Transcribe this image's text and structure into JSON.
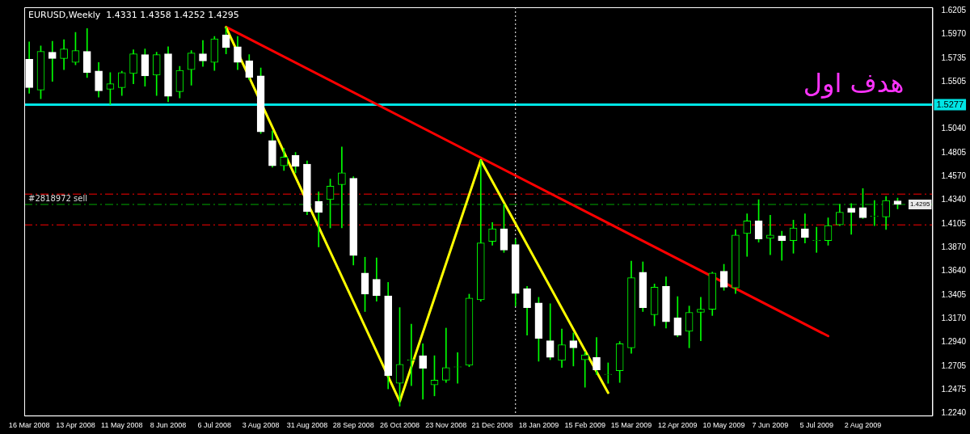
{
  "chart_data": {
    "type": "candlestick",
    "title": "EURUSD,Weekly  1.4331 1.4358 1.4252 1.4295",
    "x": [
      "2008-03-16",
      "2008-03-23",
      "2008-03-30",
      "2008-04-06",
      "2008-04-13",
      "2008-04-20",
      "2008-04-27",
      "2008-05-04",
      "2008-05-11",
      "2008-05-18",
      "2008-05-25",
      "2008-06-01",
      "2008-06-08",
      "2008-06-15",
      "2008-06-22",
      "2008-06-29",
      "2008-07-06",
      "2008-07-13",
      "2008-07-20",
      "2008-07-27",
      "2008-08-03",
      "2008-08-10",
      "2008-08-17",
      "2008-08-24",
      "2008-08-31",
      "2008-09-07",
      "2008-09-14",
      "2008-09-21",
      "2008-09-28",
      "2008-10-05",
      "2008-10-12",
      "2008-10-19",
      "2008-10-26",
      "2008-11-02",
      "2008-11-09",
      "2008-11-16",
      "2008-11-23",
      "2008-11-30",
      "2008-12-07",
      "2008-12-14",
      "2008-12-21",
      "2008-12-28",
      "2009-01-04",
      "2009-01-11",
      "2009-01-18",
      "2009-01-25",
      "2009-02-01",
      "2009-02-08",
      "2009-02-15",
      "2009-02-22",
      "2009-03-01",
      "2009-03-08",
      "2009-03-15",
      "2009-03-22",
      "2009-03-29",
      "2009-04-05",
      "2009-04-12",
      "2009-04-19",
      "2009-04-26",
      "2009-05-03",
      "2009-05-10",
      "2009-05-17",
      "2009-05-24",
      "2009-05-31",
      "2009-06-07",
      "2009-06-14",
      "2009-06-21",
      "2009-06-28",
      "2009-07-05",
      "2009-07-12",
      "2009-07-19",
      "2009-07-26",
      "2009-08-02",
      "2009-08-09",
      "2009-08-16",
      "2009-08-23"
    ],
    "ohlc": [
      [
        1.5724,
        1.5895,
        1.539,
        1.5445
      ],
      [
        1.5421,
        1.5856,
        1.5336,
        1.5802
      ],
      [
        1.5794,
        1.5902,
        1.5507,
        1.5732
      ],
      [
        1.5732,
        1.5918,
        1.5623,
        1.5825
      ],
      [
        1.5693,
        1.5988,
        1.567,
        1.5809
      ],
      [
        1.5801,
        1.6027,
        1.5545,
        1.5592
      ],
      [
        1.5608,
        1.5693,
        1.5351,
        1.5414
      ],
      [
        1.5429,
        1.5592,
        1.5281,
        1.5483
      ],
      [
        1.5445,
        1.5607,
        1.5367,
        1.5592
      ],
      [
        1.5584,
        1.5817,
        1.5483,
        1.5778
      ],
      [
        1.577,
        1.5825,
        1.546,
        1.5561
      ],
      [
        1.5569,
        1.5794,
        1.5367,
        1.577
      ],
      [
        1.5778,
        1.5848,
        1.5305,
        1.5359
      ],
      [
        1.5406,
        1.5654,
        1.5344,
        1.5615
      ],
      [
        1.5623,
        1.5809,
        1.5468,
        1.5786
      ],
      [
        1.5778,
        1.591,
        1.5654,
        1.5708
      ],
      [
        1.5693,
        1.5949,
        1.5615,
        1.5926
      ],
      [
        1.5965,
        1.6042,
        1.5778,
        1.584
      ],
      [
        1.5848,
        1.5949,
        1.5623,
        1.5693
      ],
      [
        1.5708,
        1.577,
        1.5522,
        1.5545
      ],
      [
        1.5561,
        1.5639,
        1.4994,
        1.501
      ],
      [
        1.4925,
        1.5018,
        1.4661,
        1.4676
      ],
      [
        1.4676,
        1.4847,
        1.463,
        1.4762
      ],
      [
        1.4777,
        1.4808,
        1.4606,
        1.4669
      ],
      [
        1.4692,
        1.4723,
        1.4195,
        1.4226
      ],
      [
        1.4327,
        1.442,
        1.3877,
        1.4218
      ],
      [
        1.4343,
        1.4545,
        1.4064,
        1.4475
      ],
      [
        1.449,
        1.4862,
        1.4064,
        1.4607
      ],
      [
        1.4552,
        1.4568,
        1.3699,
        1.3792
      ],
      [
        1.3621,
        1.3776,
        1.3241,
        1.3412
      ],
      [
        1.3559,
        1.3769,
        1.3342,
        1.3396
      ],
      [
        1.3396,
        1.3528,
        1.248,
        1.2612
      ],
      [
        1.2535,
        1.328,
        1.231,
        1.2721
      ],
      [
        1.276,
        1.3117,
        1.2511,
        1.2767
      ],
      [
        1.2806,
        1.2923,
        1.2379,
        1.2682
      ],
      [
        1.2519,
        1.2806,
        1.2411,
        1.2566
      ],
      [
        1.2566,
        1.3078,
        1.2543,
        1.269
      ],
      [
        1.2694,
        1.2837,
        1.2535,
        1.2698
      ],
      [
        1.2713,
        1.3412,
        1.2698,
        1.3373
      ],
      [
        1.3357,
        1.4731,
        1.3342,
        1.3916
      ],
      [
        1.3931,
        1.4118,
        1.3893,
        1.4055
      ],
      [
        1.4055,
        1.4296,
        1.3823,
        1.3846
      ],
      [
        1.39,
        1.3955,
        1.3295,
        1.3419
      ],
      [
        1.3466,
        1.3489,
        1.3008,
        1.328
      ],
      [
        1.3326,
        1.3381,
        1.2752,
        1.2977
      ],
      [
        1.2954,
        1.3318,
        1.2767,
        1.2791
      ],
      [
        1.276,
        1.307,
        1.269,
        1.2915
      ],
      [
        1.2954,
        1.3031,
        1.2705,
        1.2884
      ],
      [
        1.2767,
        1.2845,
        1.2496,
        1.2814
      ],
      [
        1.2791,
        1.2985,
        1.262,
        1.2666
      ],
      [
        1.262,
        1.2736,
        1.2535,
        1.2624
      ],
      [
        1.2659,
        1.2946,
        1.2543,
        1.2923
      ],
      [
        1.2884,
        1.3737,
        1.283,
        1.3574
      ],
      [
        1.3629,
        1.373,
        1.3241,
        1.328
      ],
      [
        1.321,
        1.3512,
        1.3101,
        1.3481
      ],
      [
        1.3489,
        1.3582,
        1.3078,
        1.314
      ],
      [
        1.3179,
        1.3388,
        1.2992,
        1.3008
      ],
      [
        1.3047,
        1.3295,
        1.2884,
        1.3233
      ],
      [
        1.3233,
        1.3381,
        1.2954,
        1.3264
      ],
      [
        1.3264,
        1.3629,
        1.3202,
        1.3621
      ],
      [
        1.3637,
        1.3706,
        1.345,
        1.3481
      ],
      [
        1.3474,
        1.4048,
        1.3419,
        1.3993
      ],
      [
        1.4009,
        1.4203,
        1.3784,
        1.4133
      ],
      [
        1.4133,
        1.4343,
        1.3924,
        1.3955
      ],
      [
        1.3962,
        1.4188,
        1.38,
        1.3993
      ],
      [
        1.3986,
        1.4032,
        1.3745,
        1.3939
      ],
      [
        1.3939,
        1.4141,
        1.3815,
        1.4063
      ],
      [
        1.4055,
        1.4203,
        1.3916,
        1.397
      ],
      [
        1.3939,
        1.4071,
        1.3823,
        1.3943
      ],
      [
        1.3939,
        1.4164,
        1.3893,
        1.4087
      ],
      [
        1.4094,
        1.4296,
        1.4087,
        1.4218
      ],
      [
        1.4258,
        1.4304,
        1.4001,
        1.4218
      ],
      [
        1.4265,
        1.4451,
        1.4156,
        1.4164
      ],
      [
        1.4176,
        1.4335,
        1.4087,
        1.418
      ],
      [
        1.4172,
        1.4374,
        1.4048,
        1.4335
      ],
      [
        1.4331,
        1.4358,
        1.4252,
        1.4295
      ]
    ],
    "series": [
      {
        "type": "line",
        "color": "#ffff00",
        "x": [
          "2008-07-13",
          "2008-10-26",
          "2008-12-14",
          "2009-03-01"
        ],
        "values": [
          1.6038,
          1.2356,
          1.4731,
          1.2441
        ]
      },
      {
        "type": "line",
        "color": "#ff0000",
        "x": [
          "2008-07-13",
          "2009-07-12"
        ],
        "values": [
          1.6042,
          1.3
        ]
      }
    ],
    "xlim": [
      "2008-03-13",
      "2009-09-13"
    ],
    "xticks": [
      {
        "value": "2008-03-16",
        "label": "16 Mar 2008"
      },
      {
        "value": "2008-04-13",
        "label": "13 Apr 2008"
      },
      {
        "value": "2008-05-11",
        "label": "11 May 2008"
      },
      {
        "value": "2008-06-08",
        "label": "8 Jun 2008"
      },
      {
        "value": "2008-07-06",
        "label": "6 Jul 2008"
      },
      {
        "value": "2008-08-03",
        "label": "3 Aug 2008"
      },
      {
        "value": "2008-08-31",
        "label": "31 Aug 2008"
      },
      {
        "value": "2008-09-28",
        "label": "28 Sep 2008"
      },
      {
        "value": "2008-10-26",
        "label": "26 Oct 2008"
      },
      {
        "value": "2008-11-23",
        "label": "23 Nov 2008"
      },
      {
        "value": "2008-12-21",
        "label": "21 Dec 2008"
      },
      {
        "value": "2009-01-18",
        "label": "18 Jan 2009"
      },
      {
        "value": "2009-02-15",
        "label": "15 Feb 2009"
      },
      {
        "value": "2009-03-15",
        "label": "15 Mar 2009"
      },
      {
        "value": "2009-04-12",
        "label": "12 Apr 2009"
      },
      {
        "value": "2009-05-10",
        "label": "10 May 2009"
      },
      {
        "value": "2009-06-07",
        "label": "7 Jun 2009"
      },
      {
        "value": "2009-07-05",
        "label": "5 Jul 2009"
      },
      {
        "value": "2009-08-02",
        "label": "2 Aug 2009"
      }
    ],
    "ylim": [
      1.2217,
      1.6236
    ],
    "yticks": [
      {
        "value": 1.224,
        "label": "1.2240"
      },
      {
        "value": 1.2475,
        "label": "1.2475"
      },
      {
        "value": 1.2705,
        "label": "1.2705"
      },
      {
        "value": 1.294,
        "label": "1.2940"
      },
      {
        "value": 1.317,
        "label": "1.3170"
      },
      {
        "value": 1.3405,
        "label": "1.3405"
      },
      {
        "value": 1.364,
        "label": "1.3640"
      },
      {
        "value": 1.387,
        "label": "1.3870"
      },
      {
        "value": 1.4105,
        "label": "1.4105"
      },
      {
        "value": 1.434,
        "label": "1.4340"
      },
      {
        "value": 1.457,
        "label": "1.4570"
      },
      {
        "value": 1.4805,
        "label": "1.4805"
      },
      {
        "value": 1.504,
        "label": "1.5040"
      },
      {
        "value": 1.5505,
        "label": "1.5505"
      },
      {
        "value": 1.5735,
        "label": "1.5735"
      },
      {
        "value": 1.597,
        "label": "1.5970"
      },
      {
        "value": 1.6205,
        "label": "1.6205"
      }
    ],
    "ref_lines": [
      {
        "axis": "y",
        "value": 1.5277,
        "label": "1.5277",
        "color": "#00e5e5",
        "line_style": "solid"
      },
      {
        "axis": "y",
        "value": 1.4397,
        "color": "#ff0000",
        "line_style": "dashed"
      },
      {
        "axis": "y",
        "value": 1.4094,
        "color": "#ff0000",
        "line_style": "dashed"
      },
      {
        "axis": "y",
        "value": 1.4295,
        "label": "#2818972 sell",
        "color": "#00aa00",
        "line_style": "dashed"
      },
      {
        "axis": "x",
        "value": "2009-01-04",
        "color": "#ffffff",
        "line_style": "dotted"
      }
    ],
    "annotations": [
      "هدف اول",
      "1.4295"
    ]
  }
}
